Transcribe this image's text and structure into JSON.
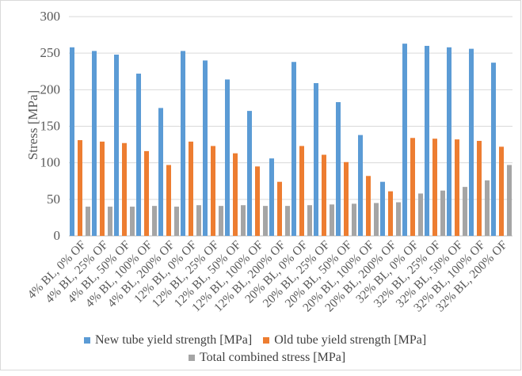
{
  "chart_data": {
    "type": "bar",
    "title": "",
    "xlabel": "",
    "ylabel": "Stress [MPa]",
    "ylim": [
      0,
      300
    ],
    "yticks": [
      0,
      50,
      100,
      150,
      200,
      250,
      300
    ],
    "grid": true,
    "legend_position": "bottom",
    "categories": [
      "4% BL, 0% OF",
      "4% BL, 25% OF",
      "4% BL, 50% OF",
      "4% BL, 100% OF",
      "4% BL, 200% OF",
      "12% BL, 0% OF",
      "12% BL, 25% OF",
      "12% BL, 50% OF",
      "12% BL, 100% OF",
      "12% BL, 200% OF",
      "20% BL, 0% OF",
      "20% BL, 25% OF",
      "20% BL, 50% OF",
      "20% BL, 100% OF",
      "20% BL, 200% OF",
      "32% BL, 0% OF",
      "32% BL, 25% OF",
      "32% BL, 50% OF",
      "32% BL, 100% OF",
      "32% BL, 200% OF"
    ],
    "series": [
      {
        "name": "New tube yield strength [MPa]",
        "color": "#5b9bd5",
        "values": [
          258,
          253,
          248,
          222,
          175,
          253,
          240,
          214,
          171,
          106,
          238,
          209,
          183,
          138,
          74,
          263,
          260,
          258,
          256,
          237
        ]
      },
      {
        "name": "Old tube yield strength [MPa]",
        "color": "#ed7d31",
        "values": [
          131,
          129,
          127,
          116,
          97,
          129,
          123,
          113,
          95,
          74,
          123,
          111,
          101,
          82,
          61,
          134,
          133,
          132,
          130,
          122
        ]
      },
      {
        "name": "Total combined stress [MPa]",
        "color": "#a5a5a5",
        "values": [
          40,
          40,
          40,
          41,
          40,
          42,
          41,
          42,
          41,
          41,
          42,
          43,
          44,
          45,
          46,
          58,
          62,
          67,
          76,
          97
        ]
      }
    ]
  }
}
